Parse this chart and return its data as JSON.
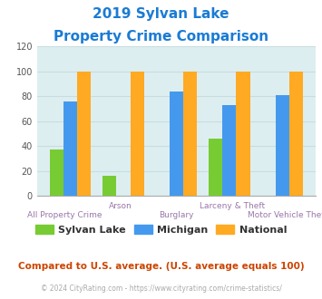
{
  "title_line1": "2019 Sylvan Lake",
  "title_line2": "Property Crime Comparison",
  "title_color": "#1a7bd4",
  "categories": [
    "All Property Crime",
    "Arson",
    "Burglary",
    "Larceny & Theft",
    "Motor Vehicle Theft"
  ],
  "xlabel_row1": [
    "",
    "Arson",
    "",
    "Larceny & Theft",
    ""
  ],
  "xlabel_row2": [
    "All Property Crime",
    "",
    "Burglary",
    "",
    "Motor Vehicle Theft"
  ],
  "sylvan_lake": [
    37,
    16,
    0,
    46,
    0
  ],
  "michigan": [
    76,
    0,
    84,
    73,
    81
  ],
  "national": [
    100,
    100,
    100,
    100,
    100
  ],
  "bar_colors": {
    "sylvan_lake": "#77cc33",
    "michigan": "#4499ee",
    "national": "#ffaa22"
  },
  "ylim": [
    0,
    120
  ],
  "yticks": [
    0,
    20,
    40,
    60,
    80,
    100,
    120
  ],
  "plot_bg": "#ddeef0",
  "legend_labels": [
    "Sylvan Lake",
    "Michigan",
    "National"
  ],
  "footnote1": "Compared to U.S. average. (U.S. average equals 100)",
  "footnote2": "© 2024 CityRating.com - https://www.cityrating.com/crime-statistics/",
  "footnote1_color": "#cc4400",
  "footnote2_color": "#aaaaaa",
  "xlabel_color": "#9977aa",
  "tick_color": "#555555",
  "grid_color": "#c8dde0"
}
